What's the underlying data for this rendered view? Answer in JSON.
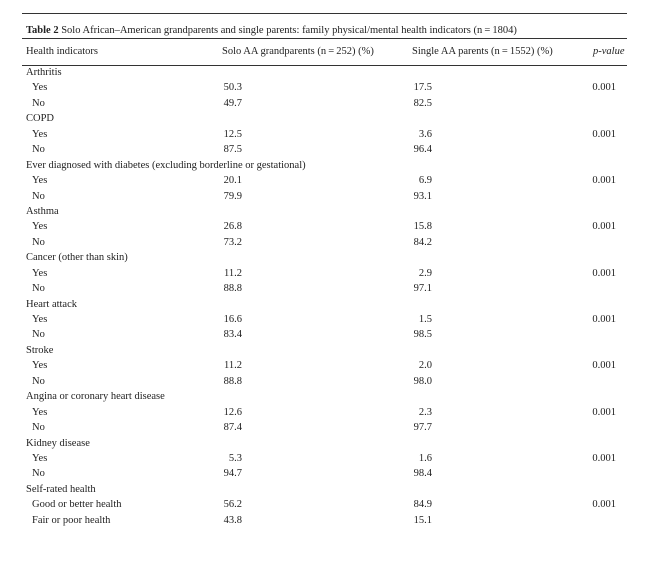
{
  "table": {
    "caption_label": "Table 2",
    "caption_text": "Solo African–American grandparents and single parents: family physical/mental health indicators (n = 1804)",
    "headers": [
      "Health indicators",
      "Solo AA grandparents (n = 252) (%)",
      "Single AA parents (n = 1552) (%)",
      "p-value"
    ],
    "groups": [
      {
        "name": "Arthritis",
        "rows": [
          {
            "label": "Yes",
            "grand": "50.3",
            "single": "17.5",
            "p": "0.001"
          },
          {
            "label": "No",
            "grand": "49.7",
            "single": "82.5",
            "p": ""
          }
        ]
      },
      {
        "name": "COPD",
        "rows": [
          {
            "label": "Yes",
            "grand": "12.5",
            "single": "3.6",
            "p": "0.001"
          },
          {
            "label": "No",
            "grand": "87.5",
            "single": "96.4",
            "p": ""
          }
        ]
      },
      {
        "name": "Ever diagnosed with diabetes (excluding borderline or gestational)",
        "rows": [
          {
            "label": "Yes",
            "grand": "20.1",
            "single": "6.9",
            "p": "0.001"
          },
          {
            "label": "No",
            "grand": "79.9",
            "single": "93.1",
            "p": ""
          }
        ]
      },
      {
        "name": "Asthma",
        "rows": [
          {
            "label": "Yes",
            "grand": "26.8",
            "single": "15.8",
            "p": "0.001"
          },
          {
            "label": "No",
            "grand": "73.2",
            "single": "84.2",
            "p": ""
          }
        ]
      },
      {
        "name": "Cancer (other than skin)",
        "rows": [
          {
            "label": "Yes",
            "grand": "11.2",
            "single": "2.9",
            "p": "0.001"
          },
          {
            "label": "No",
            "grand": "88.8",
            "single": "97.1",
            "p": ""
          }
        ]
      },
      {
        "name": "Heart attack",
        "rows": [
          {
            "label": "Yes",
            "grand": "16.6",
            "single": "1.5",
            "p": "0.001"
          },
          {
            "label": "No",
            "grand": "83.4",
            "single": "98.5",
            "p": ""
          }
        ]
      },
      {
        "name": "Stroke",
        "rows": [
          {
            "label": "Yes",
            "grand": "11.2",
            "single": "2.0",
            "p": "0.001"
          },
          {
            "label": "No",
            "grand": "88.8",
            "single": "98.0",
            "p": ""
          }
        ]
      },
      {
        "name": "Angina or coronary heart disease",
        "rows": [
          {
            "label": "Yes",
            "grand": "12.6",
            "single": "2.3",
            "p": "0.001"
          },
          {
            "label": "No",
            "grand": "87.4",
            "single": "97.7",
            "p": ""
          }
        ]
      },
      {
        "name": "Kidney disease",
        "rows": [
          {
            "label": "Yes",
            "grand": "5.3",
            "single": "1.6",
            "p": "0.001"
          },
          {
            "label": "No",
            "grand": "94.7",
            "single": "98.4",
            "p": ""
          }
        ]
      },
      {
        "name": "Self-rated health",
        "rows": [
          {
            "label": "Good or better health",
            "grand": "56.2",
            "single": "84.9",
            "p": "0.001"
          },
          {
            "label": "Fair or poor health",
            "grand": "43.8",
            "single": "15.1",
            "p": ""
          }
        ]
      }
    ]
  }
}
